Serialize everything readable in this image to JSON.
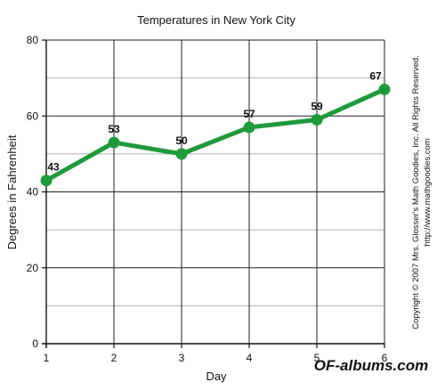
{
  "chart_data": {
    "type": "line",
    "title": "Temperatures in New York City",
    "xlabel": "Day",
    "ylabel": "Degrees in Fahrenheit",
    "x": [
      1,
      2,
      3,
      4,
      5,
      6
    ],
    "xlim": [
      1,
      6
    ],
    "ylim": [
      0,
      80
    ],
    "y_major_ticks": [
      0,
      20,
      40,
      60,
      80
    ],
    "y_minor_step": 10,
    "grid": true,
    "series": [
      {
        "values": [
          43,
          53,
          50,
          57,
          59,
          67
        ],
        "color": "#1f9a3a"
      }
    ],
    "data_labels": [
      "43",
      "53",
      "50",
      "57",
      "59",
      "67"
    ]
  },
  "copyright": {
    "line1": "Copyright © 2007 Mrs. Glosser's Math Goodies, Inc. All Rights Reserved.",
    "line2": "http://www.mathgoodies.com"
  },
  "watermark": "OF-albums.com"
}
